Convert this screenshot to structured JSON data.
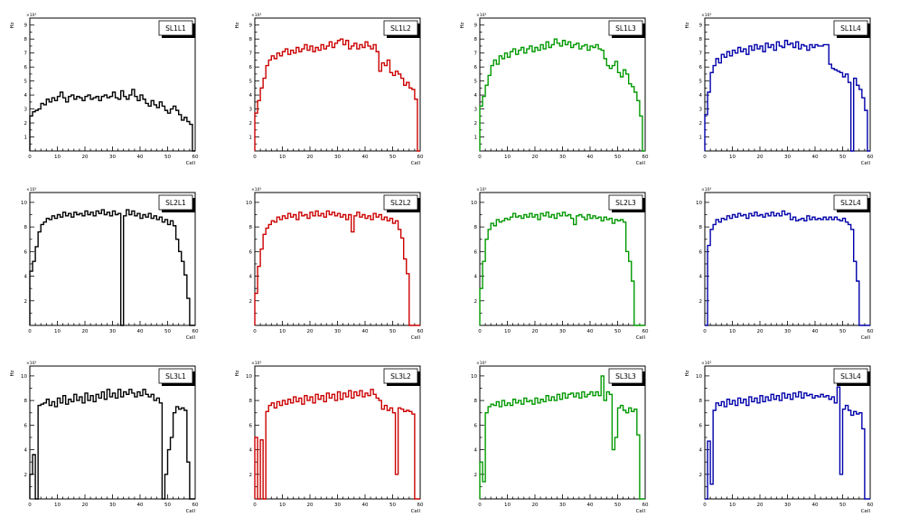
{
  "chart_data": [
    {
      "type": "step",
      "title": "SL1L1",
      "xlabel": "Cell",
      "ylabel": "Hz",
      "exponent": "×10³",
      "color": "#000000",
      "xlim": [
        0,
        60
      ],
      "ylim": [
        0,
        9.5
      ],
      "yticks": [
        1,
        2,
        3,
        4,
        5,
        6,
        7,
        8,
        9
      ],
      "xticks": [
        0,
        10,
        20,
        30,
        40,
        50,
        60
      ],
      "values": [
        2.5,
        2.8,
        2.9,
        3.0,
        3.4,
        3.3,
        3.7,
        3.5,
        3.8,
        3.6,
        3.9,
        4.2,
        3.8,
        3.5,
        3.9,
        4.0,
        3.7,
        3.9,
        3.8,
        3.6,
        3.9,
        4.0,
        3.7,
        3.8,
        3.9,
        3.6,
        3.9,
        4.0,
        3.8,
        3.9,
        4.2,
        3.8,
        3.7,
        4.3,
        3.9,
        3.7,
        4.0,
        4.4,
        3.9,
        3.6,
        4.0,
        3.7,
        3.4,
        3.2,
        3.6,
        3.3,
        3.1,
        3.5,
        3.2,
        2.9,
        2.7,
        3.0,
        3.2,
        2.9,
        2.6,
        2.2,
        2.4,
        2.1,
        1.9,
        0.0
      ]
    },
    {
      "type": "step",
      "title": "SL1L2",
      "xlabel": "Cell",
      "ylabel": "Hz",
      "exponent": "×10³",
      "color": "#cc0000",
      "xlim": [
        0,
        60
      ],
      "ylim": [
        0,
        9.5
      ],
      "yticks": [
        1,
        2,
        3,
        4,
        5,
        6,
        7,
        8,
        9
      ],
      "xticks": [
        0,
        10,
        20,
        30,
        40,
        50,
        60
      ],
      "values": [
        2.7,
        3.6,
        4.5,
        5.2,
        6.1,
        6.5,
        6.8,
        6.6,
        7.0,
        6.8,
        7.1,
        7.3,
        6.9,
        7.2,
        7.0,
        7.4,
        7.1,
        7.3,
        7.6,
        7.2,
        7.5,
        7.1,
        7.4,
        7.2,
        7.6,
        7.3,
        7.5,
        7.8,
        7.4,
        7.7,
        7.9,
        8.0,
        7.6,
        7.9,
        7.3,
        7.5,
        7.7,
        7.3,
        7.6,
        7.4,
        7.8,
        7.5,
        7.3,
        7.6,
        7.1,
        5.7,
        6.3,
        6.1,
        6.5,
        5.6,
        5.4,
        5.7,
        5.5,
        5.2,
        4.7,
        4.9,
        4.5,
        4.4,
        3.7,
        0.0
      ]
    },
    {
      "type": "step",
      "title": "SL1L3",
      "xlabel": "Cell",
      "ylabel": "Hz",
      "exponent": "×10³",
      "color": "#009900",
      "xlim": [
        0,
        60
      ],
      "ylim": [
        0,
        9.5
      ],
      "yticks": [
        1,
        2,
        3,
        4,
        5,
        6,
        7,
        8,
        9
      ],
      "xticks": [
        0,
        10,
        20,
        30,
        40,
        50,
        60
      ],
      "values": [
        3.2,
        3.9,
        4.7,
        5.4,
        6.1,
        6.5,
        6.2,
        6.8,
        6.6,
        7.0,
        6.7,
        7.1,
        7.3,
        6.9,
        7.2,
        7.4,
        7.0,
        7.3,
        7.5,
        7.1,
        7.4,
        7.2,
        7.6,
        7.3,
        7.8,
        7.4,
        7.6,
        8.0,
        7.7,
        7.5,
        7.9,
        7.6,
        7.8,
        7.4,
        7.6,
        7.7,
        7.3,
        7.5,
        7.6,
        7.2,
        7.5,
        7.4,
        7.6,
        7.3,
        7.2,
        6.6,
        6.1,
        5.9,
        6.1,
        6.4,
        5.6,
        5.3,
        5.8,
        5.5,
        4.8,
        4.6,
        4.2,
        3.6,
        2.5,
        0.0
      ]
    },
    {
      "type": "step",
      "title": "SL1L4",
      "xlabel": "Cell",
      "ylabel": "Hz",
      "exponent": "×10³",
      "color": "#0000aa",
      "xlim": [
        0,
        60
      ],
      "ylim": [
        0,
        9.5
      ],
      "yticks": [
        1,
        2,
        3,
        4,
        5,
        6,
        7,
        8,
        9
      ],
      "xticks": [
        0,
        10,
        20,
        30,
        40,
        50,
        60
      ],
      "values": [
        2.6,
        4.2,
        5.6,
        6.1,
        6.6,
        6.3,
        6.9,
        6.7,
        7.1,
        6.8,
        7.2,
        7.0,
        7.4,
        7.1,
        7.3,
        6.9,
        7.5,
        7.2,
        7.6,
        7.3,
        7.5,
        7.1,
        7.7,
        7.4,
        7.6,
        7.2,
        7.8,
        7.5,
        7.4,
        7.9,
        7.6,
        7.7,
        7.4,
        7.8,
        7.3,
        7.6,
        7.5,
        7.2,
        7.6,
        7.4,
        7.6,
        7.5,
        7.5,
        7.6,
        7.6,
        6.2,
        5.9,
        5.8,
        5.7,
        5.6,
        5.3,
        5.5,
        4.9,
        0.0,
        5.2,
        4.7,
        4.4,
        3.8,
        2.9,
        0.0
      ]
    },
    {
      "type": "step",
      "title": "SL2L1",
      "xlabel": "Cell",
      "ylabel": "",
      "exponent": "×10³",
      "color": "#000000",
      "xlim": [
        0,
        60
      ],
      "ylim": [
        0,
        10.8
      ],
      "yticks": [
        2,
        4,
        6,
        8,
        10
      ],
      "xticks": [
        0,
        10,
        20,
        30,
        40,
        50,
        60
      ],
      "values": [
        4.4,
        5.2,
        6.4,
        7.6,
        8.2,
        8.4,
        8.7,
        8.6,
        8.9,
        8.7,
        9.0,
        8.8,
        9.2,
        8.9,
        9.1,
        8.8,
        9.2,
        9.0,
        9.1,
        8.9,
        9.3,
        9.0,
        9.2,
        8.9,
        9.3,
        9.1,
        9.4,
        9.0,
        9.2,
        8.9,
        9.3,
        9.0,
        9.1,
        0.0,
        8.9,
        9.4,
        9.0,
        9.3,
        8.9,
        9.1,
        8.7,
        9.0,
        8.8,
        9.1,
        8.7,
        8.9,
        8.6,
        8.8,
        8.4,
        8.6,
        8.2,
        8.5,
        8.1,
        7.0,
        6.0,
        5.2,
        4.1,
        2.2,
        0.0,
        0.0
      ]
    },
    {
      "type": "step",
      "title": "SL2L2",
      "xlabel": "Cell",
      "ylabel": "",
      "exponent": "×10³",
      "color": "#cc0000",
      "xlim": [
        0,
        60
      ],
      "ylim": [
        0,
        10.8
      ],
      "yticks": [
        2,
        4,
        6,
        8,
        10
      ],
      "xticks": [
        0,
        10,
        20,
        30,
        40,
        50,
        60
      ],
      "values": [
        2.6,
        4.8,
        6.2,
        7.4,
        7.9,
        8.2,
        8.5,
        8.4,
        8.8,
        8.6,
        8.9,
        8.7,
        9.1,
        8.8,
        9.0,
        8.6,
        9.2,
        8.9,
        9.0,
        8.7,
        9.2,
        8.9,
        9.3,
        8.9,
        9.1,
        8.8,
        9.3,
        9.0,
        9.2,
        8.9,
        9.1,
        8.8,
        9.0,
        8.6,
        9.0,
        7.6,
        8.9,
        9.2,
        8.8,
        9.0,
        8.7,
        8.9,
        8.6,
        9.1,
        8.8,
        9.0,
        8.6,
        8.8,
        8.5,
        8.7,
        8.3,
        8.5,
        7.8,
        7.1,
        5.4,
        4.2,
        0.0,
        0.0,
        0.0,
        0.0
      ]
    },
    {
      "type": "step",
      "title": "SL2L3",
      "xlabel": "Cell",
      "ylabel": "",
      "exponent": "×10³",
      "color": "#009900",
      "xlim": [
        0,
        60
      ],
      "ylim": [
        0,
        10.8
      ],
      "yticks": [
        2,
        4,
        6,
        8,
        10
      ],
      "xticks": [
        0,
        10,
        20,
        30,
        40,
        50,
        60
      ],
      "values": [
        3.0,
        5.2,
        7.0,
        7.8,
        8.3,
        8.1,
        8.6,
        8.4,
        8.5,
        8.7,
        8.6,
        8.8,
        9.1,
        8.8,
        8.9,
        8.7,
        9.0,
        8.8,
        9.1,
        8.8,
        9.0,
        8.6,
        9.1,
        8.9,
        9.2,
        8.8,
        9.0,
        8.7,
        9.1,
        8.9,
        9.2,
        8.9,
        9.0,
        8.7,
        8.2,
        8.9,
        9.0,
        8.8,
        8.6,
        9.0,
        8.7,
        8.9,
        8.7,
        8.8,
        8.5,
        8.8,
        8.6,
        8.7,
        8.3,
        8.6,
        8.5,
        8.6,
        8.4,
        6.0,
        5.2,
        3.6,
        0.0,
        0.0,
        0.0,
        0.0
      ]
    },
    {
      "type": "step",
      "title": "SL2L4",
      "xlabel": "Cell",
      "ylabel": "",
      "exponent": "×10³",
      "color": "#0000aa",
      "xlim": [
        0,
        60
      ],
      "ylim": [
        0,
        10.8
      ],
      "yticks": [
        2,
        4,
        6,
        8,
        10
      ],
      "xticks": [
        0,
        10,
        20,
        30,
        40,
        50,
        60
      ],
      "values": [
        0.0,
        6.5,
        7.8,
        8.2,
        8.6,
        8.4,
        8.7,
        8.6,
        8.9,
        8.7,
        9.0,
        8.8,
        9.1,
        8.9,
        9.0,
        8.7,
        9.1,
        8.9,
        9.2,
        8.9,
        9.0,
        8.8,
        9.1,
        8.9,
        9.2,
        8.9,
        9.1,
        8.9,
        9.3,
        9.0,
        9.1,
        8.6,
        8.8,
        8.5,
        8.6,
        8.7,
        8.5,
        8.9,
        8.6,
        8.8,
        8.6,
        8.7,
        8.6,
        8.8,
        8.6,
        8.8,
        8.6,
        8.8,
        8.6,
        8.5,
        8.7,
        8.4,
        8.2,
        7.8,
        5.2,
        3.6,
        0.0,
        0.0,
        0.0,
        0.0
      ]
    },
    {
      "type": "step",
      "title": "SL3L1",
      "xlabel": "Cell",
      "ylabel": "Hz",
      "exponent": "×10³",
      "color": "#000000",
      "xlim": [
        0,
        60
      ],
      "ylim": [
        0,
        10.8
      ],
      "yticks": [
        2,
        4,
        6,
        8,
        10
      ],
      "xticks": [
        0,
        10,
        20,
        30,
        40,
        50,
        60
      ],
      "values": [
        2.0,
        3.6,
        0.0,
        7.6,
        7.7,
        7.8,
        8.1,
        7.6,
        7.9,
        7.5,
        8.2,
        7.8,
        8.4,
        7.7,
        8.1,
        7.9,
        8.5,
        8.0,
        8.3,
        7.8,
        8.6,
        8.0,
        8.4,
        7.9,
        8.5,
        8.2,
        8.7,
        8.1,
        8.9,
        8.3,
        8.6,
        8.2,
        8.9,
        8.3,
        8.7,
        8.5,
        8.9,
        8.6,
        8.3,
        8.7,
        8.4,
        8.9,
        8.5,
        8.3,
        8.5,
        8.0,
        8.2,
        7.8,
        0.0,
        2.0,
        4.0,
        5.0,
        7.0,
        7.5,
        7.3,
        7.4,
        7.2,
        3.0,
        0.0,
        0.0
      ]
    },
    {
      "type": "step",
      "title": "SL3L2",
      "xlabel": "Cell",
      "ylabel": "Hz",
      "exponent": "×10³",
      "color": "#cc0000",
      "xlim": [
        0,
        60
      ],
      "ylim": [
        0,
        10.8
      ],
      "yticks": [
        2,
        4,
        6,
        8,
        10
      ],
      "xticks": [
        0,
        10,
        20,
        30,
        40,
        50,
        60
      ],
      "values": [
        5.0,
        0.0,
        4.8,
        0.0,
        7.1,
        7.6,
        7.8,
        7.4,
        7.9,
        7.6,
        8.0,
        7.7,
        8.1,
        7.8,
        8.3,
        7.9,
        8.2,
        7.7,
        8.4,
        8.0,
        8.3,
        7.8,
        8.5,
        8.1,
        8.4,
        7.9,
        8.6,
        8.2,
        8.5,
        8.0,
        8.7,
        8.1,
        8.6,
        8.3,
        8.8,
        8.2,
        8.7,
        8.4,
        8.8,
        8.3,
        8.6,
        8.4,
        8.9,
        8.5,
        8.2,
        8.0,
        7.3,
        7.6,
        7.2,
        7.4,
        7.0,
        2.0,
        7.4,
        7.3,
        7.1,
        7.2,
        7.1,
        6.9,
        0.0,
        0.0
      ]
    },
    {
      "type": "step",
      "title": "SL3L3",
      "xlabel": "Cell",
      "ylabel": "",
      "exponent": "×10³",
      "color": "#009900",
      "xlim": [
        0,
        60
      ],
      "ylim": [
        0,
        10.8
      ],
      "yticks": [
        2,
        4,
        6,
        8,
        10
      ],
      "xticks": [
        0,
        10,
        20,
        30,
        40,
        50,
        60
      ],
      "values": [
        3.0,
        1.4,
        7.0,
        7.5,
        7.7,
        7.6,
        7.9,
        7.5,
        8.0,
        7.6,
        7.8,
        7.6,
        8.1,
        7.8,
        8.0,
        7.7,
        8.2,
        7.9,
        8.0,
        7.7,
        8.2,
        7.8,
        8.1,
        7.9,
        8.4,
        8.0,
        8.3,
        8.0,
        8.5,
        8.1,
        8.6,
        8.2,
        8.5,
        8.6,
        8.3,
        8.6,
        8.2,
        8.7,
        8.3,
        8.5,
        8.7,
        8.4,
        8.7,
        8.4,
        10.0,
        8.0,
        8.7,
        8.5,
        4.0,
        5.0,
        7.4,
        7.6,
        7.2,
        7.0,
        7.4,
        7.1,
        7.3,
        5.2,
        0.0,
        0.0
      ]
    },
    {
      "type": "step",
      "title": "SL3L4",
      "xlabel": "Cell",
      "ylabel": "Hz",
      "exponent": "×10³",
      "color": "#0000aa",
      "xlim": [
        0,
        60
      ],
      "ylim": [
        0,
        10.8
      ],
      "yticks": [
        2,
        4,
        6,
        8,
        10
      ],
      "xticks": [
        0,
        10,
        20,
        30,
        40,
        50,
        60
      ],
      "values": [
        0.0,
        4.7,
        1.2,
        7.2,
        7.8,
        7.6,
        7.9,
        7.5,
        8.1,
        7.7,
        8.0,
        7.6,
        8.2,
        7.8,
        8.1,
        7.6,
        8.3,
        7.9,
        8.2,
        7.8,
        8.4,
        7.9,
        8.3,
        8.0,
        8.5,
        8.1,
        8.4,
        8.0,
        8.6,
        8.2,
        8.5,
        8.1,
        8.6,
        8.3,
        8.7,
        8.2,
        8.6,
        8.4,
        8.5,
        8.2,
        8.4,
        8.3,
        8.5,
        8.3,
        8.4,
        8.1,
        8.3,
        7.8,
        9.1,
        2.0,
        7.3,
        7.6,
        7.2,
        6.8,
        7.1,
        6.9,
        7.0,
        5.7,
        0.0,
        0.0
      ]
    }
  ]
}
